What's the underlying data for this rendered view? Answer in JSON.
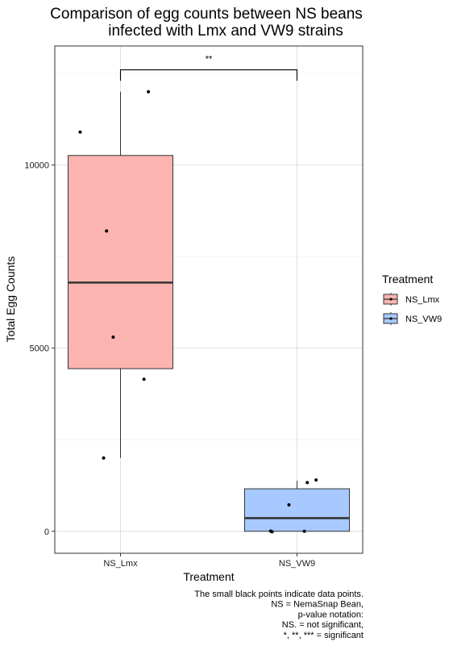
{
  "chart_data": {
    "type": "box",
    "title_lines": [
      "Comparison of egg counts between NS beans",
      "infected with Lmx and VW9 strains"
    ],
    "xlabel": "Treatment",
    "ylabel": "Total Egg Counts",
    "ylim": [
      -600,
      13250
    ],
    "y_ticks": [
      0,
      5000,
      10000
    ],
    "grid": true,
    "legend": {
      "title": "Treatment",
      "position": "right",
      "entries": [
        "NS_Lmx",
        "NS_VW9"
      ]
    },
    "categories": [
      "NS_Lmx",
      "NS_VW9"
    ],
    "boxes": [
      {
        "category": "NS_Lmx",
        "color": "#F8766D",
        "whisker_low": 2000,
        "q1": 4440,
        "median": 6790,
        "q3": 10260,
        "whisker_high": 12000
      },
      {
        "category": "NS_VW9",
        "color": "#619CFF",
        "whisker_low": 0,
        "q1": 0,
        "median": 360,
        "q3": 1160,
        "whisker_high": 1380
      }
    ],
    "points": [
      {
        "category": "NS_Lmx",
        "jitter": -0.55,
        "y": 10900
      },
      {
        "category": "NS_Lmx",
        "jitter": 0.38,
        "y": 12000
      },
      {
        "category": "NS_Lmx",
        "jitter": -0.19,
        "y": 8200
      },
      {
        "category": "NS_Lmx",
        "jitter": -0.1,
        "y": 5300
      },
      {
        "category": "NS_Lmx",
        "jitter": 0.32,
        "y": 4150
      },
      {
        "category": "NS_Lmx",
        "jitter": -0.23,
        "y": 2000
      },
      {
        "category": "NS_VW9",
        "jitter": -0.36,
        "y": 5
      },
      {
        "category": "NS_VW9",
        "jitter": -0.34,
        "y": -15
      },
      {
        "category": "NS_VW9",
        "jitter": -0.11,
        "y": 720
      },
      {
        "category": "NS_VW9",
        "jitter": 0.1,
        "y": 0
      },
      {
        "category": "NS_VW9",
        "jitter": 0.14,
        "y": 1330
      },
      {
        "category": "NS_VW9",
        "jitter": 0.26,
        "y": 1400
      }
    ],
    "significance": {
      "label": "**",
      "from": "NS_Lmx",
      "to": "NS_VW9",
      "y": 12600,
      "drop_to": 12300
    },
    "caption_lines": [
      "The small black points indicate data points.",
      "NS = NemaSnap Bean,",
      "p-value notation:",
      "NS. = not significant,",
      "*, **, *** = significant"
    ]
  }
}
